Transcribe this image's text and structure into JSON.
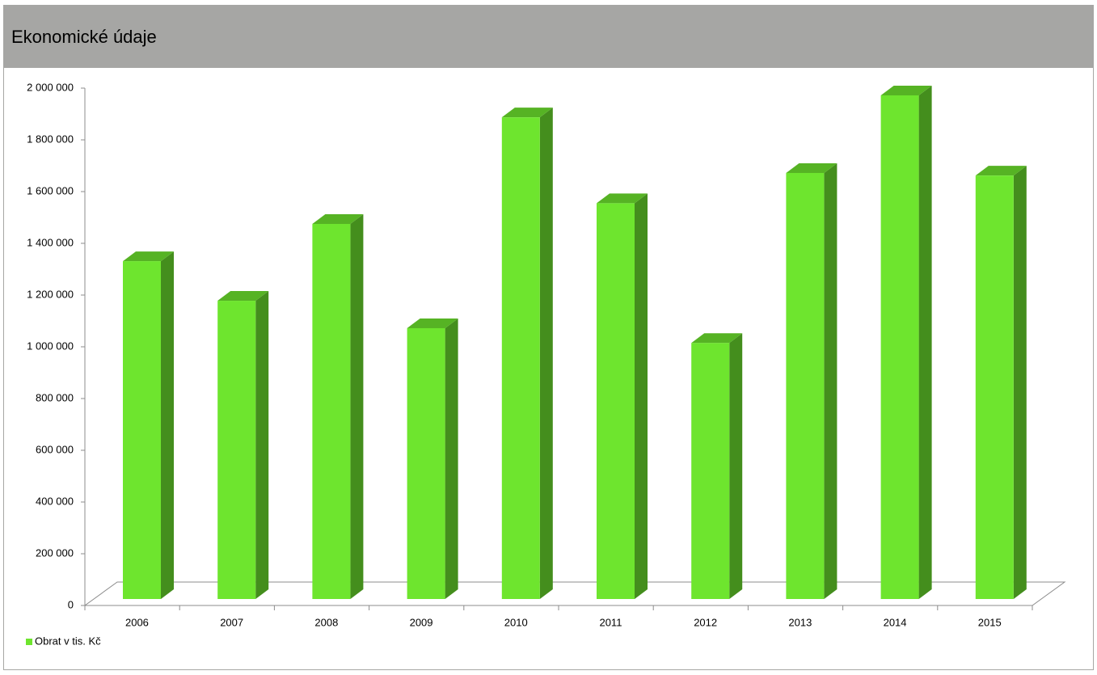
{
  "chart_data": {
    "type": "bar3d",
    "title": "Ekonomické údaje",
    "categories": [
      "2006",
      "2007",
      "2008",
      "2009",
      "2010",
      "2011",
      "2012",
      "2013",
      "2014",
      "2015"
    ],
    "series": [
      {
        "name": "Obrat v tis. Kč",
        "color": "#6ee52e",
        "values": [
          1306000,
          1153000,
          1450000,
          1047000,
          1862000,
          1530000,
          990000,
          1647000,
          1947000,
          1637000
        ]
      }
    ],
    "ylim": [
      0,
      2000000
    ],
    "yticks": [
      0,
      {
        "value": 200000,
        "label": "200 000"
      },
      {
        "value": 400000,
        "label": "400 000"
      },
      {
        "value": 600000,
        "label": "600 000"
      },
      {
        "value": 800000,
        "label": "800 000"
      },
      {
        "value": 1000000,
        "label": "1 000 000"
      },
      {
        "value": 1200000,
        "label": "1 200 000"
      },
      {
        "value": 1400000,
        "label": "1 400 000"
      },
      {
        "value": 1600000,
        "label": "1 600 000"
      },
      {
        "value": 1800000,
        "label": "1 800 000"
      },
      {
        "value": 2000000,
        "label": "2 000 000"
      }
    ],
    "legend": "bottom-left"
  }
}
